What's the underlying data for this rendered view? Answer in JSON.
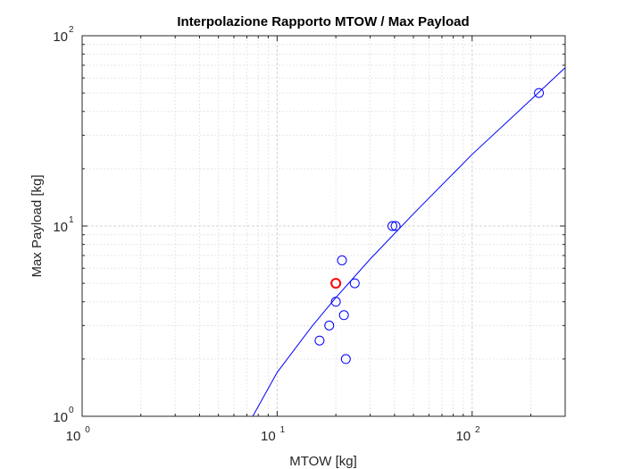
{
  "chart_data": {
    "type": "scatter",
    "title": "Interpolazione Rapporto MTOW / Max Payload",
    "xlabel": "MTOW [kg]",
    "ylabel": "Max Payload [kg]",
    "xscale": "log",
    "yscale": "log",
    "xlim": [
      1,
      300
    ],
    "ylim": [
      1,
      100
    ],
    "grid": true,
    "minor_grid": true,
    "x_ticks": [
      {
        "base": "10",
        "exp": "0",
        "value": 1
      },
      {
        "base": "10",
        "exp": "1",
        "value": 10
      },
      {
        "base": "10",
        "exp": "2",
        "value": 100
      }
    ],
    "y_ticks": [
      {
        "base": "10",
        "exp": "0",
        "value": 1
      },
      {
        "base": "10",
        "exp": "1",
        "value": 10
      },
      {
        "base": "10",
        "exp": "2",
        "value": 100
      }
    ],
    "series": [
      {
        "marker": "circle",
        "color": "#0000ff",
        "points": [
          {
            "x": 16.5,
            "y": 2.5
          },
          {
            "x": 18.5,
            "y": 3.0
          },
          {
            "x": 20.0,
            "y": 4.0
          },
          {
            "x": 21.5,
            "y": 6.6
          },
          {
            "x": 22.0,
            "y": 3.4
          },
          {
            "x": 22.5,
            "y": 2.0
          },
          {
            "x": 25.0,
            "y": 5.0
          },
          {
            "x": 39.0,
            "y": 10.0
          },
          {
            "x": 40.5,
            "y": 10.0
          },
          {
            "x": 220.0,
            "y": 50.0
          }
        ]
      },
      {
        "marker": "circle",
        "color": "#ff0000",
        "points": [
          {
            "x": 20.0,
            "y": 5.0
          }
        ]
      },
      {
        "type": "line",
        "color": "#0000ff",
        "points": [
          {
            "x": 7.5,
            "y": 1.0
          },
          {
            "x": 10.0,
            "y": 1.7
          },
          {
            "x": 15.0,
            "y": 2.95
          },
          {
            "x": 20.0,
            "y": 4.2
          },
          {
            "x": 30.0,
            "y": 6.7
          },
          {
            "x": 50.0,
            "y": 11.6
          },
          {
            "x": 100.0,
            "y": 23.8
          },
          {
            "x": 200.0,
            "y": 46.0
          },
          {
            "x": 300.0,
            "y": 68.0
          }
        ]
      }
    ]
  }
}
